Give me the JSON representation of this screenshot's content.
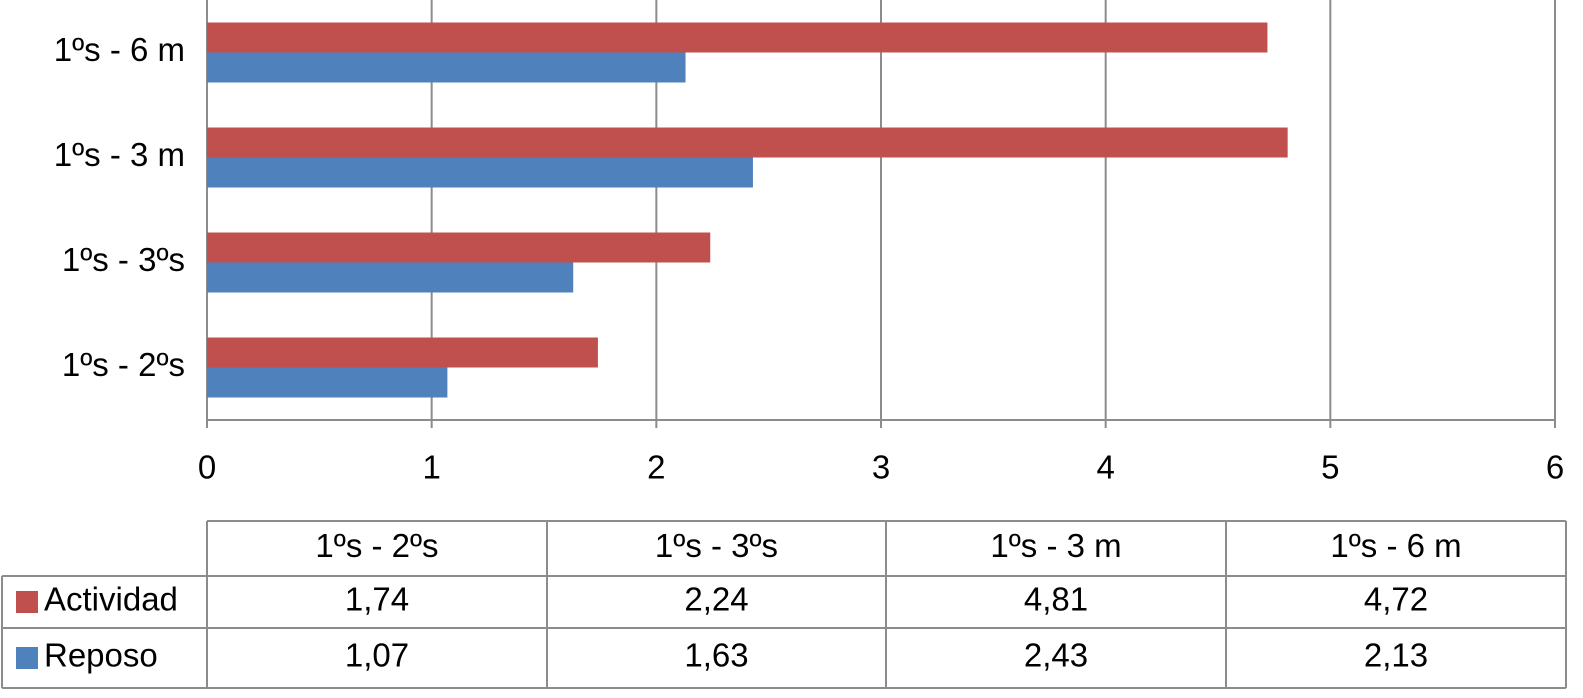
{
  "chart_data": {
    "type": "bar",
    "orientation": "horizontal",
    "categories": [
      "1ºs - 2ºs",
      "1ºs - 3ºs",
      "1ºs - 3 m",
      "1ºs - 6 m"
    ],
    "series": [
      {
        "name": "Actividad",
        "color": "#c0504d",
        "values": [
          1.74,
          2.24,
          4.81,
          4.72
        ],
        "value_labels": [
          "1,74",
          "2,24",
          "4,81",
          "4,72"
        ]
      },
      {
        "name": "Reposo",
        "color": "#4f81bd",
        "values": [
          1.07,
          1.63,
          2.43,
          2.13
        ],
        "value_labels": [
          "1,07",
          "1,63",
          "2,43",
          "2,13"
        ]
      }
    ],
    "xlim": [
      0,
      6
    ],
    "xticks": [
      0,
      1,
      2,
      3,
      4,
      5,
      6
    ],
    "grid": true,
    "data_table": true
  }
}
